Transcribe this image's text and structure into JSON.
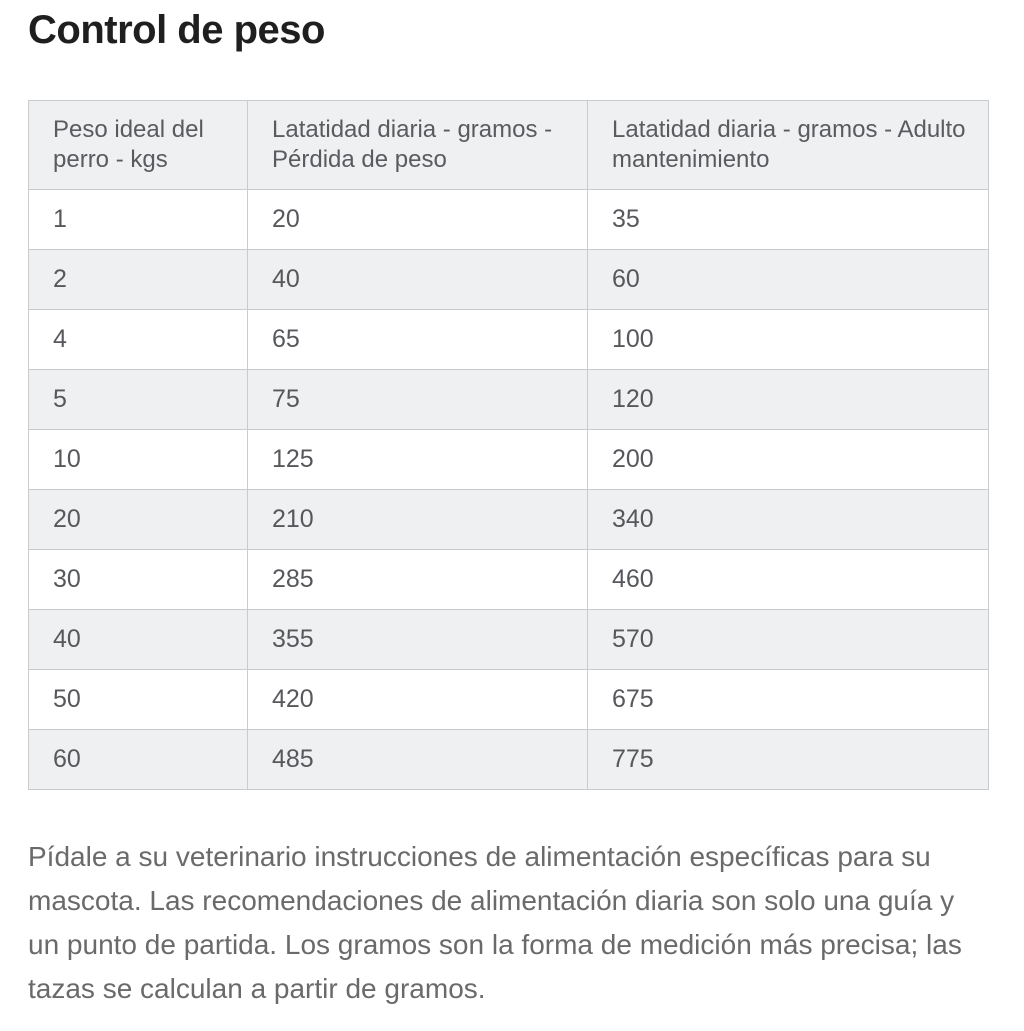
{
  "page": {
    "title": "Control de peso"
  },
  "table": {
    "headers": [
      "Peso ideal del perro - kgs",
      "Latatidad diaria - gramos - Pérdida de peso",
      "Latatidad diaria - gramos - Adulto mantenimiento"
    ],
    "rows": [
      [
        "1",
        "20",
        "35"
      ],
      [
        "2",
        "40",
        "60"
      ],
      [
        "4",
        "65",
        "100"
      ],
      [
        "5",
        "75",
        "120"
      ],
      [
        "10",
        "125",
        "200"
      ],
      [
        "20",
        "210",
        "340"
      ],
      [
        "30",
        "285",
        "460"
      ],
      [
        "40",
        "355",
        "570"
      ],
      [
        "50",
        "420",
        "675"
      ],
      [
        "60",
        "485",
        "775"
      ]
    ]
  },
  "footer": {
    "text": "Pídale a su veterinario instrucciones de alimentación específicas para su\nmascota. Las recomendaciones de alimentación diaria son solo una guía y\nun punto de partida. Los gramos son la forma de medición más precisa; las\ntazas se calculan a partir de gramos."
  },
  "colors": {
    "background": "#ffffff",
    "title_text": "#1f1f1f",
    "table_text": "#56585c",
    "header_text": "#595b5f",
    "header_bg": "#eff0f1",
    "stripe_bg": "#eff0f1",
    "border": "#c9cbcd",
    "footer_text": "#6a6a6a"
  }
}
